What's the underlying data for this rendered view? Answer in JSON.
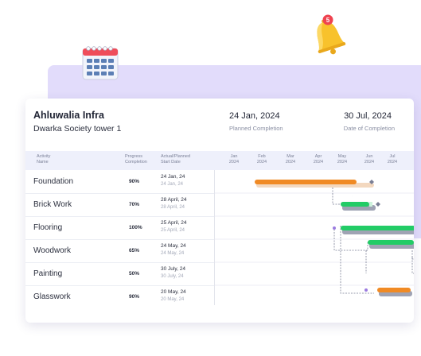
{
  "header": {
    "company": "Ahluwalia Infra",
    "project": "Dwarka Society tower 1",
    "planned_completion_date": "24 Jan, 2024",
    "planned_completion_label": "Planned Completion",
    "date_of_completion": "30 Jul, 2024",
    "date_of_completion_label": "Date of Completion"
  },
  "columns": {
    "activity": "Activity\nName",
    "progress": "Progress\nCompletion",
    "start": "Actual/Planned\nStart Date"
  },
  "months": [
    "Jan\n2024",
    "Feb\n2024",
    "Mar\n2024",
    "Apr\n2024",
    "May\n2024",
    "Jun\n2024",
    "Jul\n2024"
  ],
  "notification": {
    "count": "5"
  },
  "colors": {
    "orange": "#f08a24",
    "green": "#22cc66",
    "lavender": "#e2dcfb",
    "dependency": "#7a7f95"
  },
  "rows": [
    {
      "name": "Foundation",
      "progress": "90%",
      "actual": "24 Jan, 24",
      "planned": "24 Jan, 24",
      "bar_color": "orange"
    },
    {
      "name": "Brick Work",
      "progress": "70%",
      "actual": "28 April, 24",
      "planned": "28 April, 24",
      "bar_color": "green"
    },
    {
      "name": "Flooring",
      "progress": "100%",
      "actual": "25 April, 24",
      "planned": "25 April, 24",
      "bar_color": "green"
    },
    {
      "name": "Woodwork",
      "progress": "65%",
      "actual": "24 May, 24",
      "planned": "24 May, 24",
      "bar_color": "green"
    },
    {
      "name": "Painting",
      "progress": "50%",
      "actual": "30 July, 24",
      "planned": "30 July, 24",
      "bar_color": "orange"
    },
    {
      "name": "Glasswork",
      "progress": "90%",
      "actual": "20 May, 24",
      "planned": "20 May, 24",
      "bar_color": "orange"
    }
  ]
}
